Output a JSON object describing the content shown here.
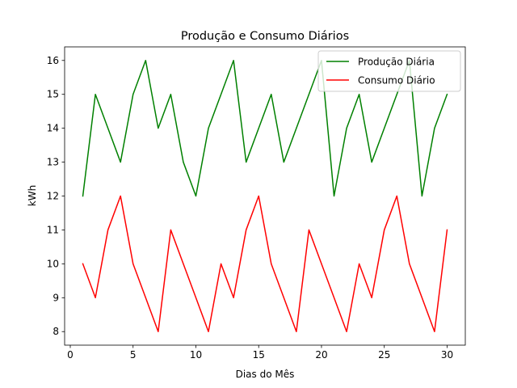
{
  "chart_data": {
    "type": "line",
    "title": "Produção e Consumo Diários",
    "xlabel": "Dias do Mês",
    "ylabel": "kWh",
    "xlim": [
      -0.45,
      31.45
    ],
    "ylim": [
      7.6,
      16.4
    ],
    "xticks": [
      0,
      5,
      10,
      15,
      20,
      25,
      30
    ],
    "yticks": [
      8,
      9,
      10,
      11,
      12,
      13,
      14,
      15,
      16
    ],
    "grid": false,
    "legend_position": "top-right",
    "x": [
      1,
      2,
      3,
      4,
      5,
      6,
      7,
      8,
      9,
      10,
      11,
      12,
      13,
      14,
      15,
      16,
      17,
      18,
      19,
      20,
      21,
      22,
      23,
      24,
      25,
      26,
      27,
      28,
      29,
      30
    ],
    "series": [
      {
        "name": "Produção Diária",
        "color": "#008000",
        "values": [
          12,
          15,
          14,
          13,
          15,
          16,
          14,
          15,
          13,
          12,
          14,
          15,
          16,
          13,
          14,
          15,
          13,
          14,
          15,
          16,
          12,
          14,
          15,
          13,
          14,
          15,
          16,
          12,
          14,
          15
        ]
      },
      {
        "name": "Consumo Diário",
        "color": "#ff0000",
        "values": [
          10,
          9,
          11,
          12,
          10,
          9,
          8,
          11,
          10,
          9,
          8,
          10,
          9,
          11,
          12,
          10,
          9,
          8,
          11,
          10,
          9,
          8,
          10,
          9,
          11,
          12,
          10,
          9,
          8,
          11
        ]
      }
    ]
  }
}
